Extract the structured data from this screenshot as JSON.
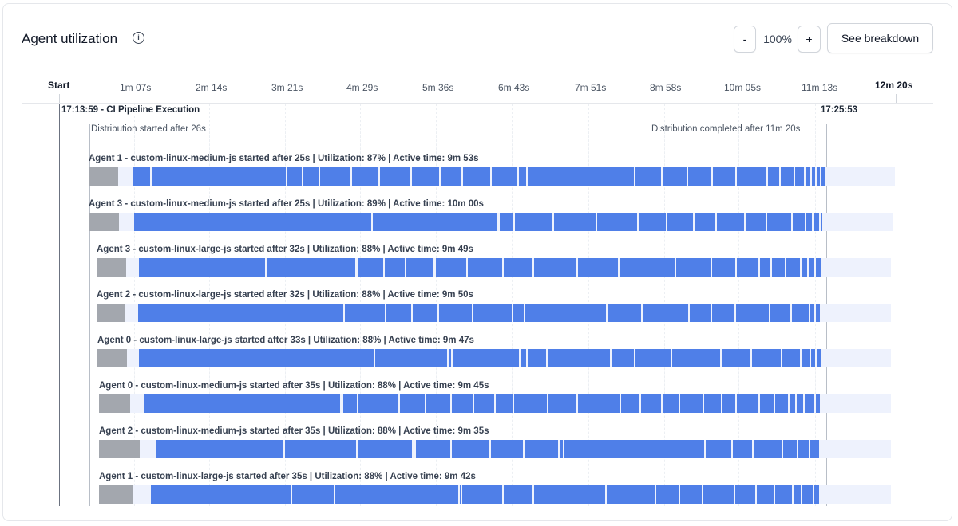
{
  "header": {
    "title": "Agent utilization",
    "info_icon": "info-icon",
    "zoom_out_label": "-",
    "zoom_level": "100%",
    "zoom_in_label": "+",
    "breakdown_label": "See breakdown"
  },
  "timeline": {
    "start_label": "Start",
    "end_label": "12m 20s",
    "ticks": [
      "1m 07s",
      "2m 14s",
      "3m 21s",
      "4m 29s",
      "5m 36s",
      "6m 43s",
      "7m 51s",
      "8m 58s",
      "10m 05s",
      "11m 13s"
    ],
    "start_marker": "17:13:59 - CI Pipeline Execution",
    "end_marker": "17:25:53",
    "distribution_start": "Distribution started after 26s",
    "distribution_end": "Distribution completed after 11m 20s"
  },
  "colors": {
    "active": "#4f7fe8",
    "setup": "#a3a7ae",
    "track": "#eef2fd"
  },
  "agents": [
    {
      "label": "Agent 1 - custom-linux-medium-js started after 25s | Utilization: 87% | Active time: 9m 53s"
    },
    {
      "label": "Agent 3 - custom-linux-medium-js started after 25s | Utilization: 89% | Active time: 10m 00s"
    },
    {
      "label": "Agent 3 - custom-linux-large-js started after 32s | Utilization: 88% | Active time: 9m 49s"
    },
    {
      "label": "Agent 2 - custom-linux-large-js started after 32s | Utilization: 88% | Active time: 9m 50s"
    },
    {
      "label": "Agent 0 - custom-linux-large-js started after 33s | Utilization: 88% | Active time: 9m 47s"
    },
    {
      "label": "Agent 0 - custom-linux-medium-js started after 35s | Utilization: 88% | Active time: 9m 45s"
    },
    {
      "label": "Agent 2 - custom-linux-medium-js started after 35s | Utilization: 88% | Active time: 9m 35s"
    },
    {
      "label": "Agent 1 - custom-linux-large-js started after 35s | Utilization: 88% | Active time: 9m 42s"
    }
  ]
}
